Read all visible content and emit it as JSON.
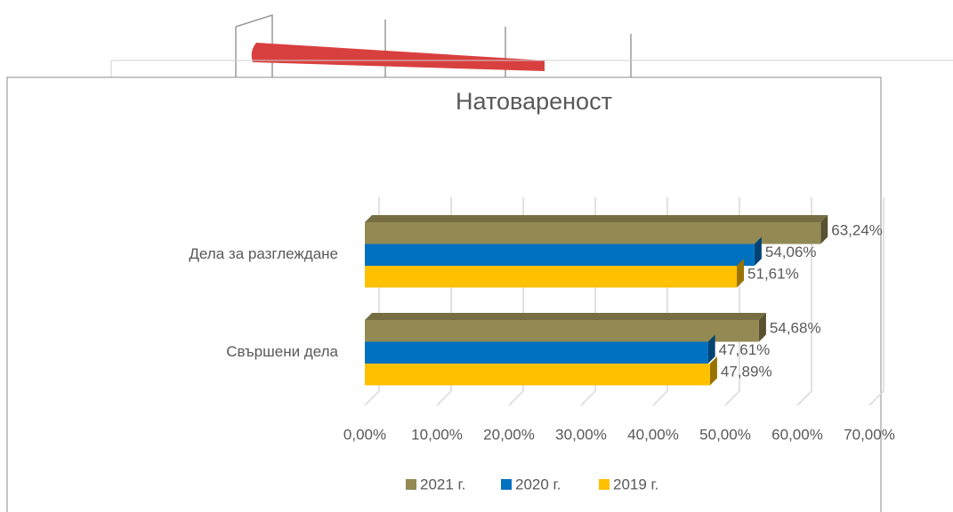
{
  "chart_data": {
    "type": "bar",
    "orientation": "horizontal",
    "title": "Натоварeност",
    "categories": [
      "Дела за разглеждане",
      "Свършени дела"
    ],
    "series": [
      {
        "name": "2021 г.",
        "color": "#938953",
        "values": [
          63.24,
          54.68
        ],
        "value_labels": [
          "63,24%",
          "54,68%"
        ]
      },
      {
        "name": "2020 г.",
        "color": "#0070c0",
        "values": [
          54.06,
          47.61
        ],
        "value_labels": [
          "54,06%",
          "47,61%"
        ]
      },
      {
        "name": "2019 г.",
        "color": "#ffc000",
        "values": [
          51.61,
          47.89
        ],
        "value_labels": [
          "51,61%",
          "47,89%"
        ]
      }
    ],
    "xlim": [
      0,
      70
    ],
    "xticks": [
      {
        "value": 0,
        "label": "0,00%"
      },
      {
        "value": 10,
        "label": "10,00%"
      },
      {
        "value": 20,
        "label": "20,00%"
      },
      {
        "value": 30,
        "label": "30,00%"
      },
      {
        "value": 40,
        "label": "40,00%"
      },
      {
        "value": 50,
        "label": "50,00%"
      },
      {
        "value": 60,
        "label": "60,00%"
      },
      {
        "value": 70,
        "label": "70,00%"
      }
    ],
    "grid": true,
    "legend": "bottom"
  }
}
